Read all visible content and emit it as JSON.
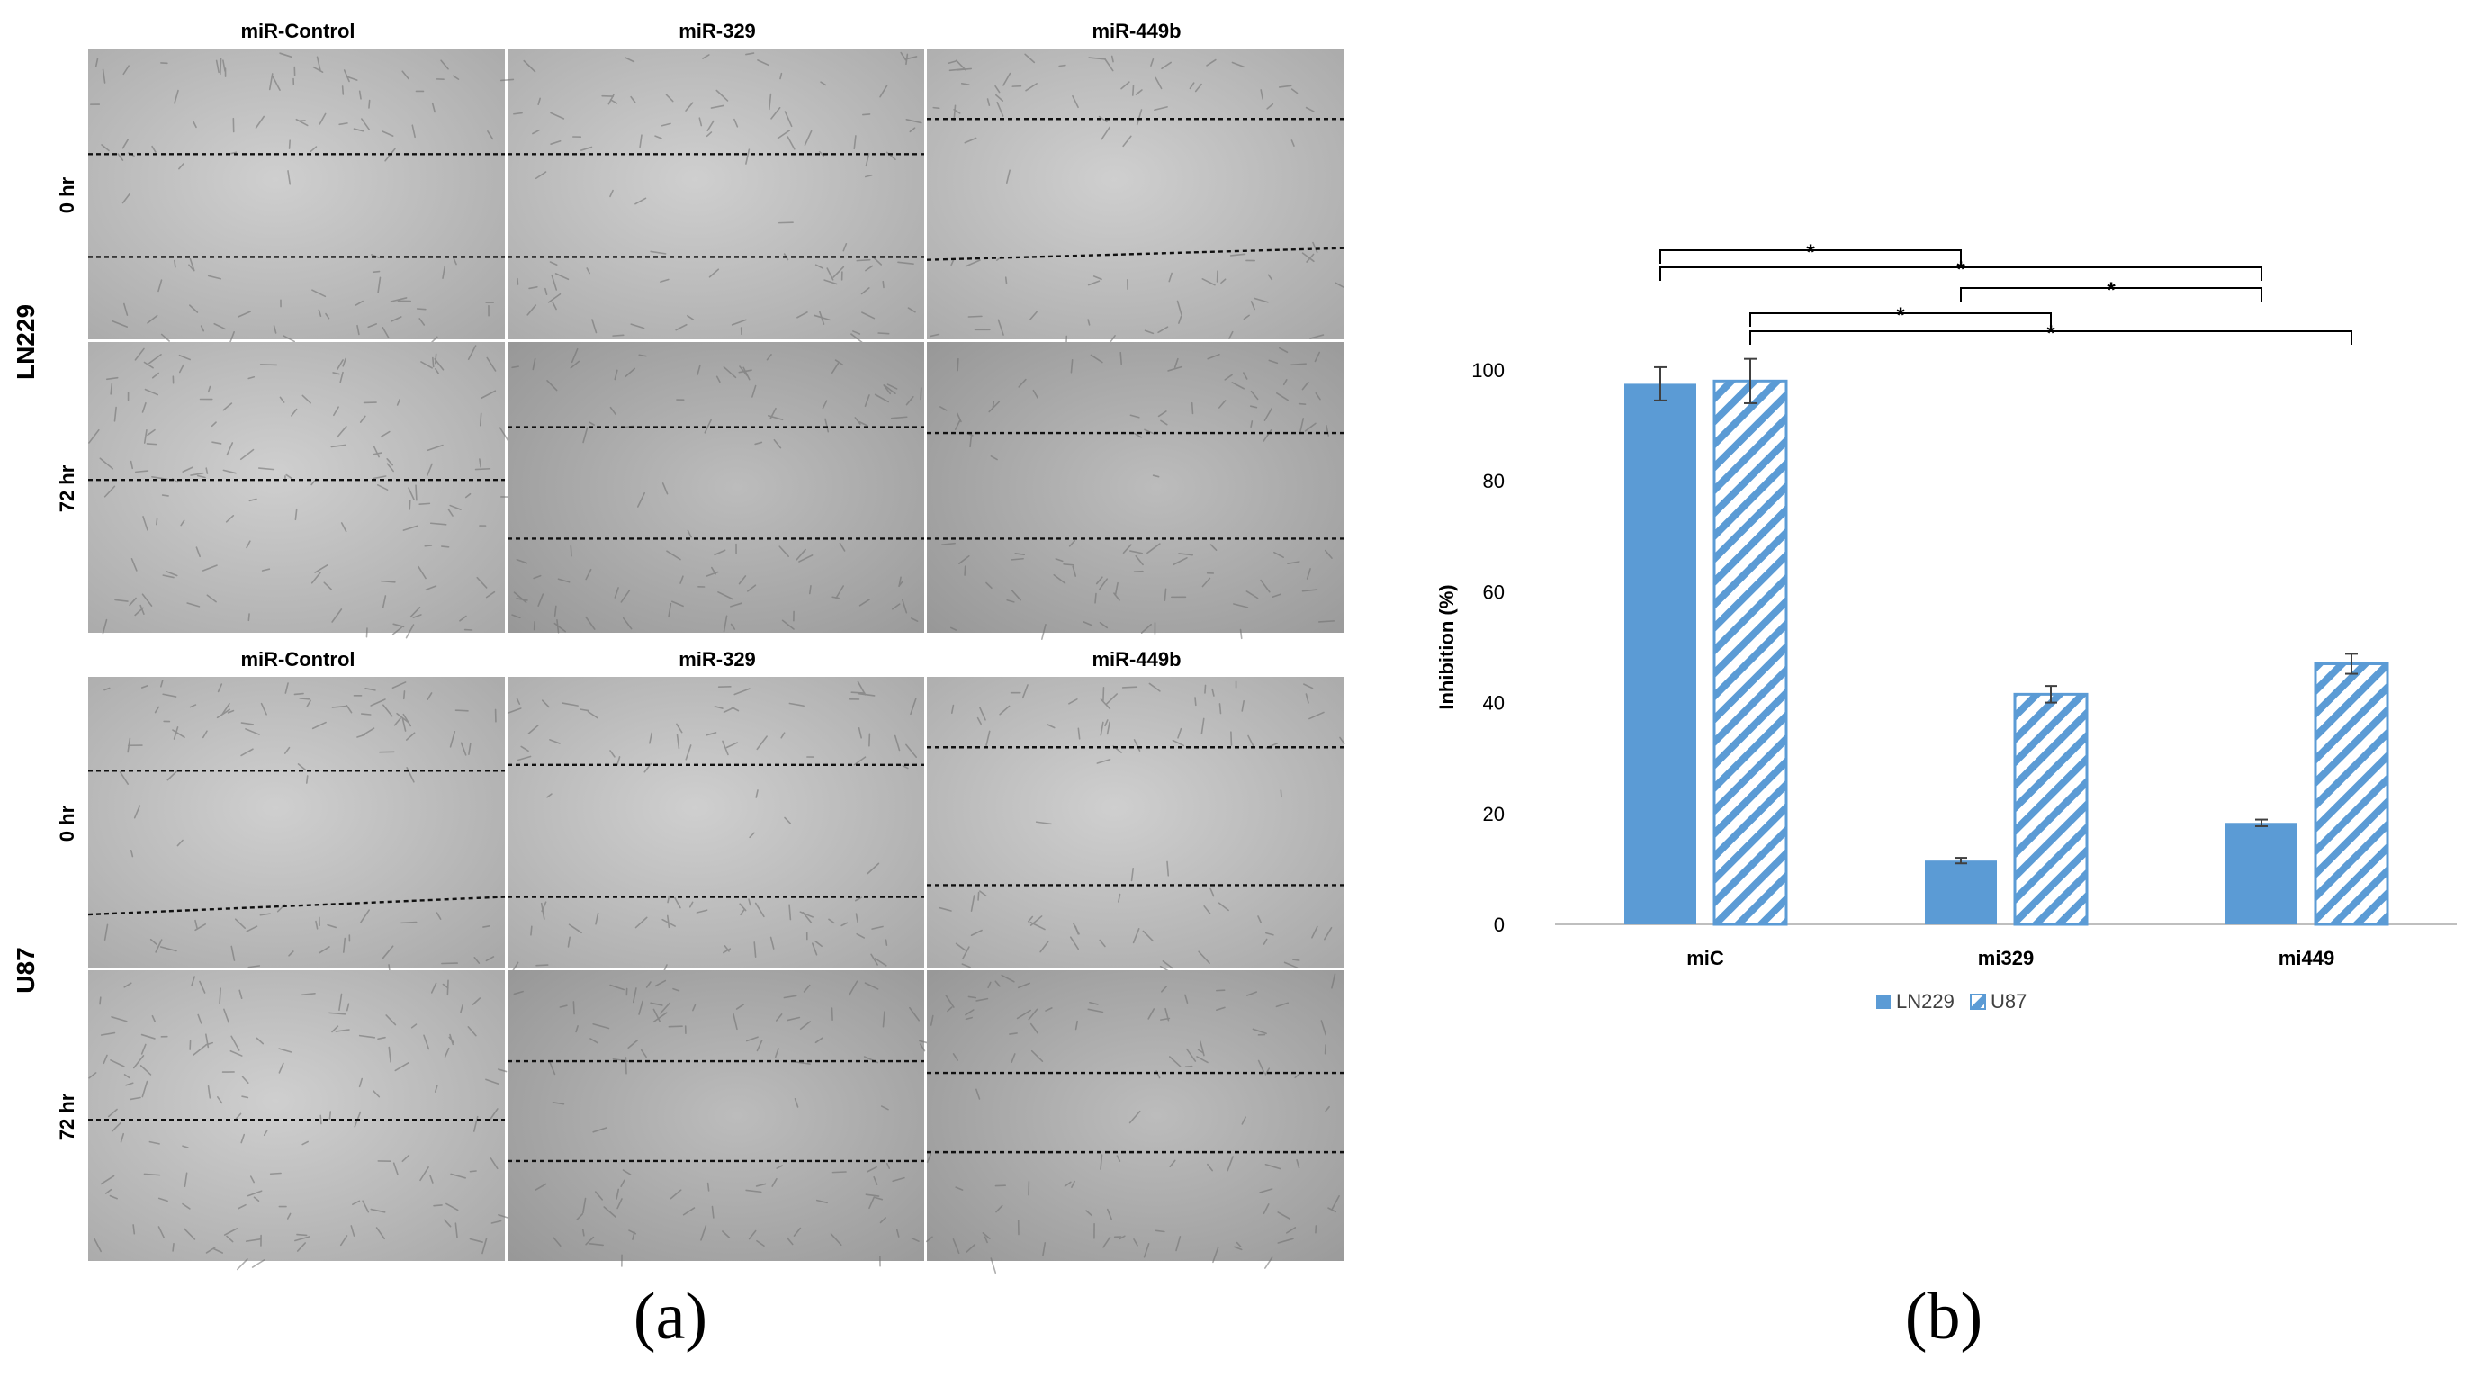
{
  "panel_a": {
    "label": "(a)",
    "blocks": [
      {
        "cell_line": "LN229",
        "columns": [
          "miR-Control",
          "miR-329",
          "miR-449b"
        ],
        "rows": [
          {
            "time": "0 hr",
            "wound": [
              [
                0.36,
                0.36
              ],
              [
                0.36,
                0.36
              ],
              [
                0.24,
                0.24
              ]
            ],
            "wound_bottom": [
              [
                0.71,
                0.71
              ],
              [
                0.71,
                0.71
              ],
              [
                0.72,
                0.68
              ]
            ]
          },
          {
            "time": "72 hr",
            "wound": [
              [
                0.47,
                0.47
              ],
              [
                0.29,
                0.29
              ],
              [
                0.31,
                0.31
              ]
            ],
            "wound_bottom": [
              [
                null,
                null
              ],
              [
                0.67,
                0.67
              ],
              [
                0.67,
                0.67
              ]
            ]
          }
        ]
      },
      {
        "cell_line": "U87",
        "columns": [
          "miR-Control",
          "miR-329",
          "miR-449b"
        ],
        "rows": [
          {
            "time": "0 hr",
            "wound": [
              [
                0.32,
                0.32
              ],
              [
                0.3,
                0.3
              ],
              [
                0.24,
                0.24
              ]
            ],
            "wound_bottom": [
              [
                0.81,
                0.75
              ],
              [
                0.75,
                0.75
              ],
              [
                0.71,
                0.71
              ]
            ]
          },
          {
            "time": "72 hr",
            "wound": [
              [
                0.51,
                0.51
              ],
              [
                0.31,
                0.31
              ],
              [
                0.35,
                0.35
              ]
            ],
            "wound_bottom": [
              [
                null,
                null
              ],
              [
                0.65,
                0.65
              ],
              [
                0.62,
                0.62
              ]
            ]
          }
        ]
      }
    ]
  },
  "panel_b": {
    "label": "(b)"
  },
  "chart_data": {
    "type": "bar",
    "categories": [
      "miC",
      "mi329",
      "mi449"
    ],
    "series": [
      {
        "name": "LN229",
        "values": [
          97.5,
          11.5,
          18.3
        ],
        "errors": [
          3.0,
          0.5,
          0.6
        ],
        "color": "#5b9bd5",
        "pattern": "solid"
      },
      {
        "name": "U87",
        "values": [
          98.0,
          41.5,
          47.0
        ],
        "errors": [
          4.0,
          1.5,
          1.8
        ],
        "color": "#5b9bd5",
        "pattern": "hatched"
      }
    ],
    "ylabel": "Inhibition (%)",
    "ylim": [
      0,
      100
    ],
    "yticks": [
      0,
      20,
      40,
      60,
      80,
      100
    ],
    "legend_position": "bottom",
    "significance": [
      {
        "from": [
          0,
          0
        ],
        "to": [
          1,
          0
        ],
        "label": "*"
      },
      {
        "from": [
          0,
          0
        ],
        "to": [
          2,
          0
        ],
        "label": "*"
      },
      {
        "from": [
          1,
          0
        ],
        "to": [
          2,
          0
        ],
        "label": "*"
      },
      {
        "from": [
          0,
          1
        ],
        "to": [
          1,
          1
        ],
        "label": "*"
      },
      {
        "from": [
          0,
          1
        ],
        "to": [
          2,
          1
        ],
        "label": "*"
      }
    ]
  }
}
